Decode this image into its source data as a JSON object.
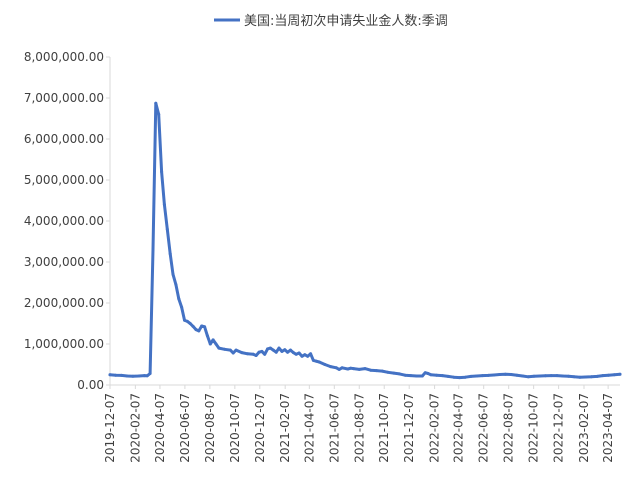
{
  "chart_data": {
    "type": "line",
    "legend": {
      "position": "top",
      "label": "美国:当周初次申请失业金人数:季调"
    },
    "y_ticks": [
      "0.00",
      "1,000,000.00",
      "2,000,000.00",
      "3,000,000.00",
      "4,000,000.00",
      "5,000,000.00",
      "6,000,000.00",
      "7,000,000.00",
      "8,000,000.00"
    ],
    "ylim": [
      0,
      8000000
    ],
    "x_ticks": [
      "2019-12-07",
      "2020-02-07",
      "2020-04-07",
      "2020-06-07",
      "2020-08-07",
      "2020-10-07",
      "2020-12-07",
      "2021-02-07",
      "2021-04-07",
      "2021-06-07",
      "2021-08-07",
      "2021-10-07",
      "2021-12-07",
      "2022-02-07",
      "2022-04-07",
      "2022-06-07",
      "2022-08-07",
      "2022-10-07",
      "2022-12-07",
      "2023-02-07",
      "2023-04-07"
    ],
    "xlim": [
      "2019-12-07",
      "2023-05-06"
    ],
    "grid": false,
    "colors": {
      "series": "#4472c4",
      "axis": "#d9d9d9",
      "text": "#404040"
    },
    "series": [
      {
        "name": "美国:当周初次申请失业金人数:季调",
        "points": [
          [
            "2019-12-07",
            250000
          ],
          [
            "2019-12-21",
            240000
          ],
          [
            "2020-01-04",
            235000
          ],
          [
            "2020-01-18",
            220000
          ],
          [
            "2020-02-01",
            215000
          ],
          [
            "2020-02-15",
            220000
          ],
          [
            "2020-02-29",
            230000
          ],
          [
            "2020-03-07",
            225000
          ],
          [
            "2020-03-14",
            280000
          ],
          [
            "2020-03-21",
            3300000
          ],
          [
            "2020-03-28",
            6870000
          ],
          [
            "2020-04-04",
            6600000
          ],
          [
            "2020-04-11",
            5200000
          ],
          [
            "2020-04-18",
            4400000
          ],
          [
            "2020-04-25",
            3800000
          ],
          [
            "2020-05-02",
            3200000
          ],
          [
            "2020-05-09",
            2700000
          ],
          [
            "2020-05-16",
            2450000
          ],
          [
            "2020-05-23",
            2100000
          ],
          [
            "2020-05-30",
            1900000
          ],
          [
            "2020-06-06",
            1580000
          ],
          [
            "2020-06-13",
            1550000
          ],
          [
            "2020-06-20",
            1500000
          ],
          [
            "2020-06-27",
            1430000
          ],
          [
            "2020-07-04",
            1350000
          ],
          [
            "2020-07-11",
            1320000
          ],
          [
            "2020-07-18",
            1440000
          ],
          [
            "2020-07-25",
            1420000
          ],
          [
            "2020-08-01",
            1200000
          ],
          [
            "2020-08-08",
            1000000
          ],
          [
            "2020-08-15",
            1100000
          ],
          [
            "2020-08-22",
            1000000
          ],
          [
            "2020-08-29",
            900000
          ],
          [
            "2020-09-12",
            870000
          ],
          [
            "2020-09-26",
            850000
          ],
          [
            "2020-10-03",
            780000
          ],
          [
            "2020-10-10",
            850000
          ],
          [
            "2020-10-24",
            790000
          ],
          [
            "2020-11-07",
            760000
          ],
          [
            "2020-11-21",
            750000
          ],
          [
            "2020-11-28",
            720000
          ],
          [
            "2020-12-05",
            800000
          ],
          [
            "2020-12-12",
            820000
          ],
          [
            "2020-12-19",
            750000
          ],
          [
            "2020-12-26",
            880000
          ],
          [
            "2021-01-02",
            900000
          ],
          [
            "2021-01-09",
            850000
          ],
          [
            "2021-01-16",
            800000
          ],
          [
            "2021-01-23",
            900000
          ],
          [
            "2021-01-30",
            820000
          ],
          [
            "2021-02-06",
            860000
          ],
          [
            "2021-02-13",
            800000
          ],
          [
            "2021-02-20",
            850000
          ],
          [
            "2021-02-27",
            790000
          ],
          [
            "2021-03-06",
            750000
          ],
          [
            "2021-03-13",
            780000
          ],
          [
            "2021-03-20",
            700000
          ],
          [
            "2021-03-27",
            740000
          ],
          [
            "2021-04-03",
            700000
          ],
          [
            "2021-04-10",
            760000
          ],
          [
            "2021-04-17",
            600000
          ],
          [
            "2021-04-24",
            580000
          ],
          [
            "2021-05-01",
            560000
          ],
          [
            "2021-05-15",
            500000
          ],
          [
            "2021-05-29",
            450000
          ],
          [
            "2021-06-12",
            420000
          ],
          [
            "2021-06-19",
            380000
          ],
          [
            "2021-06-26",
            420000
          ],
          [
            "2021-07-10",
            390000
          ],
          [
            "2021-07-17",
            410000
          ],
          [
            "2021-07-24",
            400000
          ],
          [
            "2021-08-07",
            380000
          ],
          [
            "2021-08-21",
            400000
          ],
          [
            "2021-09-04",
            360000
          ],
          [
            "2021-09-18",
            350000
          ],
          [
            "2021-10-02",
            340000
          ],
          [
            "2021-10-16",
            310000
          ],
          [
            "2021-10-30",
            290000
          ],
          [
            "2021-11-13",
            270000
          ],
          [
            "2021-11-27",
            240000
          ],
          [
            "2021-12-11",
            230000
          ],
          [
            "2021-12-25",
            220000
          ],
          [
            "2022-01-08",
            220000
          ],
          [
            "2022-01-15",
            300000
          ],
          [
            "2022-01-22",
            280000
          ],
          [
            "2022-01-29",
            250000
          ],
          [
            "2022-02-12",
            240000
          ],
          [
            "2022-02-26",
            230000
          ],
          [
            "2022-03-12",
            210000
          ],
          [
            "2022-03-26",
            190000
          ],
          [
            "2022-04-09",
            180000
          ],
          [
            "2022-04-23",
            190000
          ],
          [
            "2022-05-07",
            210000
          ],
          [
            "2022-05-21",
            220000
          ],
          [
            "2022-06-04",
            230000
          ],
          [
            "2022-06-18",
            235000
          ],
          [
            "2022-07-02",
            245000
          ],
          [
            "2022-07-16",
            255000
          ],
          [
            "2022-07-30",
            260000
          ],
          [
            "2022-08-13",
            255000
          ],
          [
            "2022-08-27",
            240000
          ],
          [
            "2022-09-10",
            220000
          ],
          [
            "2022-09-24",
            200000
          ],
          [
            "2022-10-08",
            215000
          ],
          [
            "2022-10-22",
            220000
          ],
          [
            "2022-11-05",
            225000
          ],
          [
            "2022-11-19",
            230000
          ],
          [
            "2022-12-03",
            230000
          ],
          [
            "2022-12-17",
            220000
          ],
          [
            "2022-12-31",
            215000
          ],
          [
            "2023-01-14",
            200000
          ],
          [
            "2023-01-28",
            190000
          ],
          [
            "2023-02-11",
            195000
          ],
          [
            "2023-02-25",
            200000
          ],
          [
            "2023-03-11",
            210000
          ],
          [
            "2023-03-25",
            230000
          ],
          [
            "2023-04-08",
            240000
          ],
          [
            "2023-04-22",
            250000
          ],
          [
            "2023-05-06",
            260000
          ]
        ]
      }
    ]
  }
}
